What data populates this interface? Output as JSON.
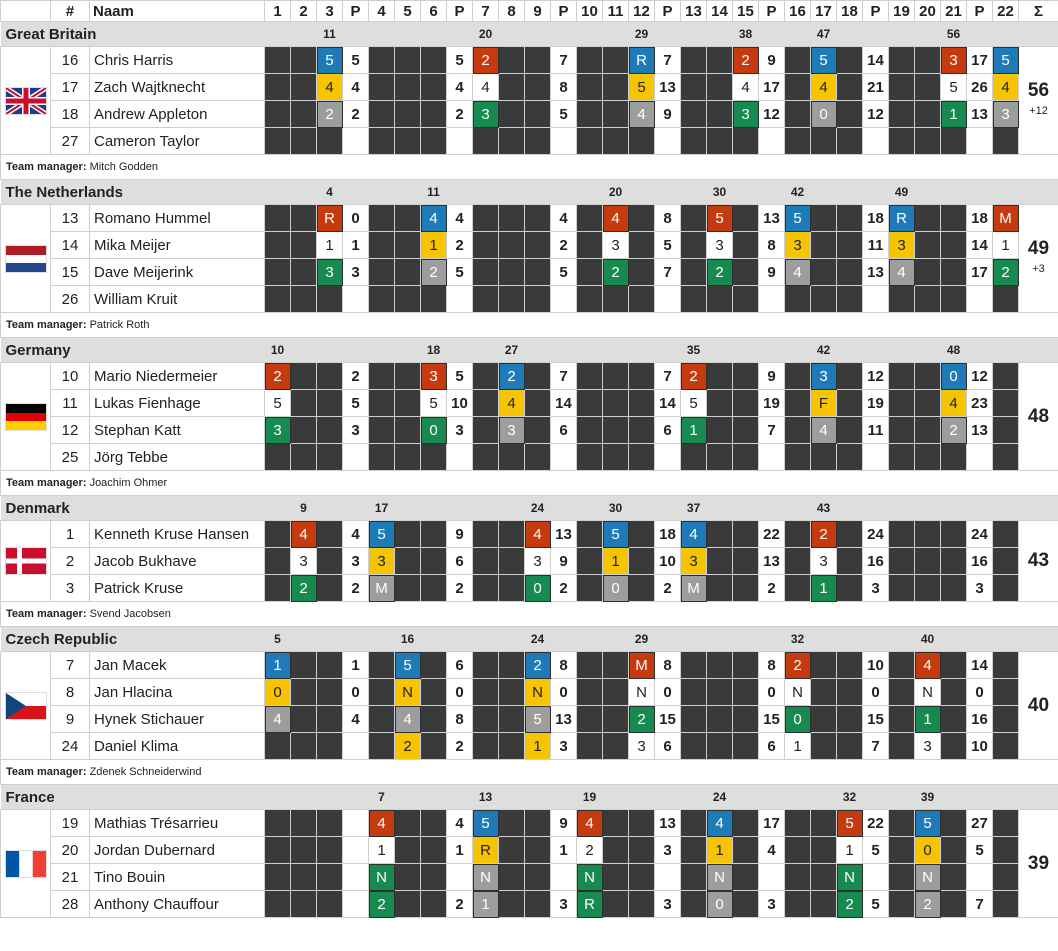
{
  "header": {
    "hash": "#",
    "naam": "Naam",
    "sigma": "Σ",
    "cols": [
      "1",
      "2",
      "3",
      "P",
      "4",
      "5",
      "6",
      "P",
      "7",
      "8",
      "9",
      "P",
      "10",
      "11",
      "12",
      "P",
      "13",
      "14",
      "15",
      "P",
      "16",
      "17",
      "18",
      "P",
      "19",
      "20",
      "21",
      "P",
      "22"
    ]
  },
  "manager_prefix": "Team manager:",
  "colors": {
    "red": "#c63a10",
    "blue": "#1f7ab8",
    "yellow": "#f6c400",
    "green": "#178a4f",
    "grey": "#9d9d9d",
    "dark": "#3a3a3a"
  },
  "teams": [
    {
      "name": "Great Britain",
      "flag": "uk-flag",
      "total": "56",
      "bonus": "+12",
      "manager": "Mitch Godden",
      "heat_markers": {
        "3": "11",
        "7": "20",
        "12": "29",
        "15": "38",
        "17": "47",
        "21": "56"
      },
      "riders": [
        {
          "num": "16",
          "name": "Chris Harris",
          "cells": {
            "3": [
              "5",
              "blue"
            ],
            "P1": "5",
            "P2": "5",
            "7": [
              "2",
              "red"
            ],
            "P3": "7",
            "12": [
              "R",
              "blue"
            ],
            "P4": "7",
            "15": [
              "2",
              "red"
            ],
            "P5": "9",
            "17": [
              "5",
              "blue"
            ],
            "P6": "14",
            "21": [
              "3",
              "red"
            ],
            "P7": "17",
            "22": [
              "5",
              "blue"
            ]
          }
        },
        {
          "num": "17",
          "name": "Zach Wajtknecht",
          "cells": {
            "3": [
              "4",
              "yellow"
            ],
            "P1": "4",
            "P2": "4",
            "7": [
              "4",
              "white"
            ],
            "P3": "8",
            "12": [
              "5",
              "yellow"
            ],
            "P4": "13",
            "15": [
              "4",
              "white"
            ],
            "P5": "17",
            "17": [
              "4",
              "yellow"
            ],
            "P6": "21",
            "21": [
              "5",
              "white"
            ],
            "P7": "26",
            "22": [
              "4",
              "yellow"
            ]
          }
        },
        {
          "num": "18",
          "name": "Andrew Appleton",
          "cells": {
            "3": [
              "2",
              "grey"
            ],
            "P1": "2",
            "P2": "2",
            "7": [
              "3",
              "green"
            ],
            "P3": "5",
            "12": [
              "4",
              "grey"
            ],
            "P4": "9",
            "15": [
              "3",
              "green"
            ],
            "P5": "12",
            "17": [
              "0",
              "grey"
            ],
            "P6": "12",
            "21": [
              "1",
              "green"
            ],
            "P7": "13",
            "22": [
              "3",
              "grey"
            ]
          }
        },
        {
          "num": "27",
          "name": "Cameron Taylor",
          "cells": {}
        }
      ]
    },
    {
      "name": "The Netherlands",
      "flag": "nl-flag",
      "total": "49",
      "bonus": "+3",
      "manager": "Patrick Roth",
      "heat_markers": {
        "3": "4",
        "6": "11",
        "11": "20",
        "14": "30",
        "16": "42",
        "19": "49"
      },
      "riders": [
        {
          "num": "13",
          "name": "Romano Hummel",
          "cells": {
            "3": [
              "R",
              "red"
            ],
            "P1": "0",
            "6": [
              "4",
              "blue"
            ],
            "P2": "4",
            "P3": "4",
            "11": [
              "4",
              "red"
            ],
            "P4": "8",
            "14": [
              "5",
              "red"
            ],
            "P5": "13",
            "16": [
              "5",
              "blue"
            ],
            "P6": "18",
            "19": [
              "R",
              "blue"
            ],
            "P7": "18",
            "22": [
              "M",
              "red"
            ]
          }
        },
        {
          "num": "14",
          "name": "Mika Meijer",
          "cells": {
            "3": [
              "1",
              "white"
            ],
            "P1": "1",
            "6": [
              "1",
              "yellow"
            ],
            "P2": "2",
            "P3": "2",
            "11": [
              "3",
              "white"
            ],
            "P4": "5",
            "14": [
              "3",
              "white"
            ],
            "P5": "8",
            "16": [
              "3",
              "yellow"
            ],
            "P6": "11",
            "19": [
              "3",
              "yellow"
            ],
            "P7": "14",
            "22": [
              "1",
              "white"
            ]
          }
        },
        {
          "num": "15",
          "name": "Dave Meijerink",
          "cells": {
            "3": [
              "3",
              "green"
            ],
            "P1": "3",
            "6": [
              "2",
              "grey"
            ],
            "P2": "5",
            "P3": "5",
            "11": [
              "2",
              "green"
            ],
            "P4": "7",
            "14": [
              "2",
              "green"
            ],
            "P5": "9",
            "16": [
              "4",
              "grey"
            ],
            "P6": "13",
            "19": [
              "4",
              "grey"
            ],
            "P7": "17",
            "22": [
              "2",
              "green"
            ]
          }
        },
        {
          "num": "26",
          "name": "William Kruit",
          "cells": {}
        }
      ]
    },
    {
      "name": "Germany",
      "flag": "de-flag",
      "total": "48",
      "bonus": "",
      "manager": "Joachim Ohmer",
      "heat_markers": {
        "1": "10",
        "6": "18",
        "8": "27",
        "13": "35",
        "17": "42",
        "21": "48"
      },
      "riders": [
        {
          "num": "10",
          "name": "Mario Niedermeier",
          "cells": {
            "1": [
              "2",
              "red"
            ],
            "P1": "2",
            "6": [
              "3",
              "red"
            ],
            "P2": "5",
            "8": [
              "2",
              "blue"
            ],
            "P3": "7",
            "P4": "7",
            "13": [
              "2",
              "red"
            ],
            "P5": "9",
            "17": [
              "3",
              "blue"
            ],
            "P6": "12",
            "21": [
              "0",
              "blue"
            ],
            "P7": "12"
          }
        },
        {
          "num": "11",
          "name": "Lukas Fienhage",
          "cells": {
            "1": [
              "5",
              "white"
            ],
            "P1": "5",
            "6": [
              "5",
              "white"
            ],
            "P2": "10",
            "8": [
              "4",
              "yellow"
            ],
            "P3": "14",
            "P4": "14",
            "13": [
              "5",
              "white"
            ],
            "P5": "19",
            "17": [
              "F",
              "yellow"
            ],
            "P6": "19",
            "21": [
              "4",
              "yellow"
            ],
            "P7": "23"
          }
        },
        {
          "num": "12",
          "name": "Stephan Katt",
          "cells": {
            "1": [
              "3",
              "green"
            ],
            "P1": "3",
            "6": [
              "0",
              "green"
            ],
            "P2": "3",
            "8": [
              "3",
              "grey"
            ],
            "P3": "6",
            "P4": "6",
            "13": [
              "1",
              "green"
            ],
            "P5": "7",
            "17": [
              "4",
              "grey"
            ],
            "P6": "11",
            "21": [
              "2",
              "grey"
            ],
            "P7": "13"
          }
        },
        {
          "num": "25",
          "name": "Jörg Tebbe",
          "cells": {}
        }
      ]
    },
    {
      "name": "Denmark",
      "flag": "dk-flag",
      "total": "43",
      "bonus": "",
      "manager": "Svend Jacobsen",
      "heat_markers": {
        "2": "9",
        "4": "17",
        "9": "24",
        "11": "30",
        "13": "37",
        "17": "43"
      },
      "riders": [
        {
          "num": "1",
          "name": "Kenneth Kruse Hansen",
          "cells": {
            "2": [
              "4",
              "red"
            ],
            "P1": "4",
            "4": [
              "5",
              "blue"
            ],
            "P2": "9",
            "9": [
              "4",
              "red"
            ],
            "P3": "13",
            "11": [
              "5",
              "blue"
            ],
            "P4": "18",
            "13": [
              "4",
              "blue"
            ],
            "P5": "22",
            "17": [
              "2",
              "red"
            ],
            "P6": "24",
            "P7": "24"
          }
        },
        {
          "num": "2",
          "name": "Jacob Bukhave",
          "cells": {
            "2": [
              "3",
              "white"
            ],
            "P1": "3",
            "4": [
              "3",
              "yellow"
            ],
            "P2": "6",
            "9": [
              "3",
              "white"
            ],
            "P3": "9",
            "11": [
              "1",
              "yellow"
            ],
            "P4": "10",
            "13": [
              "3",
              "yellow"
            ],
            "P5": "13",
            "17": [
              "3",
              "white"
            ],
            "P6": "16",
            "P7": "16"
          }
        },
        {
          "num": "3",
          "name": "Patrick Kruse",
          "cells": {
            "2": [
              "2",
              "green"
            ],
            "P1": "2",
            "4": [
              "M",
              "grey"
            ],
            "P2": "2",
            "9": [
              "0",
              "green"
            ],
            "P3": "2",
            "11": [
              "0",
              "grey"
            ],
            "P4": "2",
            "13": [
              "M",
              "grey"
            ],
            "P5": "2",
            "17": [
              "1",
              "green"
            ],
            "P6": "3",
            "P7": "3"
          }
        }
      ]
    },
    {
      "name": "Czech Republic",
      "flag": "cz-flag",
      "total": "40",
      "bonus": "",
      "manager": "Zdenek Schneiderwind",
      "heat_markers": {
        "1": "5",
        "5": "16",
        "9": "24",
        "12": "29",
        "16": "32",
        "20": "40"
      },
      "riders": [
        {
          "num": "7",
          "name": "Jan Macek",
          "cells": {
            "1": [
              "1",
              "blue"
            ],
            "P1": "1",
            "5": [
              "5",
              "blue"
            ],
            "P2": "6",
            "9": [
              "2",
              "blue"
            ],
            "P3": "8",
            "12": [
              "M",
              "red"
            ],
            "P4": "8",
            "P5": "8",
            "16": [
              "2",
              "red"
            ],
            "P6": "10",
            "20": [
              "4",
              "red"
            ],
            "P7": "14"
          }
        },
        {
          "num": "8",
          "name": "Jan Hlacina",
          "cells": {
            "1": [
              "0",
              "yellow"
            ],
            "P1": "0",
            "5": [
              "N",
              "yellow"
            ],
            "P2": "0",
            "9": [
              "N",
              "yellow"
            ],
            "P3": "0",
            "12": [
              "N",
              "white"
            ],
            "P4": "0",
            "P5": "0",
            "16": [
              "N",
              "white"
            ],
            "P6": "0",
            "20": [
              "N",
              "white"
            ],
            "P7": "0"
          }
        },
        {
          "num": "9",
          "name": "Hynek Stichauer",
          "cells": {
            "1": [
              "4",
              "grey"
            ],
            "P1": "4",
            "5": [
              "4",
              "grey"
            ],
            "P2": "8",
            "9": [
              "5",
              "grey"
            ],
            "P3": "13",
            "12": [
              "2",
              "green"
            ],
            "P4": "15",
            "P5": "15",
            "16": [
              "0",
              "green"
            ],
            "P6": "15",
            "20": [
              "1",
              "green"
            ],
            "P7": "16"
          }
        },
        {
          "num": "24",
          "name": "Daniel Klima",
          "cells": {
            "P1": "",
            "5": [
              "2",
              "yellow"
            ],
            "P2": "2",
            "9": [
              "1",
              "yellow"
            ],
            "P3": "3",
            "12": [
              "3",
              "white"
            ],
            "P4": "6",
            "P5": "6",
            "16": [
              "1",
              "white"
            ],
            "P6": "7",
            "20": [
              "3",
              "white"
            ],
            "P7": "10"
          }
        }
      ]
    },
    {
      "name": "France",
      "flag": "fr-flag",
      "total": "39",
      "bonus": "",
      "manager": "",
      "heat_markers": {
        "4": "7",
        "7": "13",
        "10": "19",
        "14": "24",
        "18": "32",
        "20": "39"
      },
      "riders": [
        {
          "num": "19",
          "name": "Mathias Trésarrieu",
          "cells": {
            "4": [
              "4",
              "red"
            ],
            "P2": "4",
            "7": [
              "5",
              "blue"
            ],
            "P3": "9",
            "10": [
              "4",
              "red"
            ],
            "P4": "13",
            "14": [
              "4",
              "blue"
            ],
            "P5": "17",
            "18": [
              "5",
              "red"
            ],
            "P6": "22",
            "20": [
              "5",
              "blue"
            ],
            "P7": "27"
          }
        },
        {
          "num": "20",
          "name": "Jordan Dubernard",
          "cells": {
            "4": [
              "1",
              "white"
            ],
            "P2": "1",
            "7": [
              "R",
              "yellow"
            ],
            "P3": "1",
            "10": [
              "2",
              "white"
            ],
            "P4": "3",
            "14": [
              "1",
              "yellow"
            ],
            "P5": "4",
            "18": [
              "1",
              "white"
            ],
            "P6": "5",
            "20": [
              "0",
              "yellow"
            ],
            "P7": "5"
          }
        },
        {
          "num": "21",
          "name": "Tino Bouin",
          "cells": {
            "4": [
              "N",
              "green"
            ],
            "7": [
              "N",
              "grey"
            ],
            "10": [
              "N",
              "green"
            ],
            "14": [
              "N",
              "grey"
            ],
            "18": [
              "N",
              "green"
            ],
            "20": [
              "N",
              "grey"
            ]
          }
        },
        {
          "num": "28",
          "name": "Anthony Chauffour",
          "cells": {
            "4": [
              "2",
              "green"
            ],
            "P2": "2",
            "7": [
              "1",
              "grey"
            ],
            "P3": "3",
            "10": [
              "R",
              "green"
            ],
            "P4": "3",
            "14": [
              "0",
              "grey"
            ],
            "P5": "3",
            "18": [
              "2",
              "green"
            ],
            "P6": "5",
            "20": [
              "2",
              "grey"
            ],
            "P7": "7"
          }
        }
      ]
    }
  ]
}
